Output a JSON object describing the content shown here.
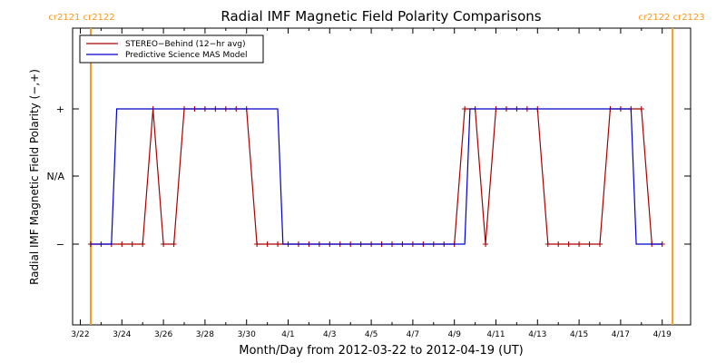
{
  "chart_data": {
    "type": "line",
    "title": "Radial IMF Magnetic Field Polarity Comparisons",
    "xlabel": "Month/Day from 2012-03-22 to 2012-04-19 (UT)",
    "ylabel": "Radial IMF Magnetic Field Polarity (−,+)",
    "x_ticks": [
      "3/22",
      "3/24",
      "3/26",
      "3/28",
      "3/30",
      "4/1",
      "4/3",
      "4/5",
      "4/7",
      "4/9",
      "4/11",
      "4/13",
      "4/15",
      "4/17",
      "4/19"
    ],
    "y_ticks": [
      "−",
      "N/A",
      "+"
    ],
    "xlim": [
      "2012-03-22",
      "2012-04-19"
    ],
    "grid": false,
    "legend_position": "top-left",
    "carrington_markers": [
      {
        "label": "cr2121 cr2122",
        "date": "2012-03-22T12:00",
        "color": "#f59a23"
      },
      {
        "label": "cr2122 cr2123",
        "date": "2012-04-19T12:00",
        "color": "#f59a23"
      }
    ],
    "series": [
      {
        "name": "STEREO−Behind (12−hr avg)",
        "color": "#aa0000",
        "marker": "plus",
        "points": [
          [
            "2012-03-22T12:00",
            -1
          ],
          [
            "2012-03-23T00:00",
            -1
          ],
          [
            "2012-03-23T12:00",
            -1
          ],
          [
            "2012-03-24T00:00",
            -1
          ],
          [
            "2012-03-24T12:00",
            -1
          ],
          [
            "2012-03-25T00:00",
            -1
          ],
          [
            "2012-03-25T12:00",
            1
          ],
          [
            "2012-03-26T00:00",
            -1
          ],
          [
            "2012-03-26T12:00",
            -1
          ],
          [
            "2012-03-27T00:00",
            1
          ],
          [
            "2012-03-27T12:00",
            1
          ],
          [
            "2012-03-28T00:00",
            1
          ],
          [
            "2012-03-28T12:00",
            1
          ],
          [
            "2012-03-29T00:00",
            1
          ],
          [
            "2012-03-29T12:00",
            1
          ],
          [
            "2012-03-30T00:00",
            1
          ],
          [
            "2012-03-30T12:00",
            -1
          ],
          [
            "2012-03-31T00:00",
            -1
          ],
          [
            "2012-03-31T12:00",
            -1
          ],
          [
            "2012-04-01T00:00",
            -1
          ],
          [
            "2012-04-01T12:00",
            -1
          ],
          [
            "2012-04-02T00:00",
            -1
          ],
          [
            "2012-04-02T12:00",
            -1
          ],
          [
            "2012-04-03T00:00",
            -1
          ],
          [
            "2012-04-03T12:00",
            -1
          ],
          [
            "2012-04-04T00:00",
            -1
          ],
          [
            "2012-04-04T12:00",
            -1
          ],
          [
            "2012-04-05T00:00",
            -1
          ],
          [
            "2012-04-05T12:00",
            -1
          ],
          [
            "2012-04-06T00:00",
            -1
          ],
          [
            "2012-04-06T12:00",
            -1
          ],
          [
            "2012-04-07T00:00",
            -1
          ],
          [
            "2012-04-07T12:00",
            -1
          ],
          [
            "2012-04-08T00:00",
            -1
          ],
          [
            "2012-04-08T12:00",
            -1
          ],
          [
            "2012-04-09T00:00",
            -1
          ],
          [
            "2012-04-09T12:00",
            1
          ],
          [
            "2012-04-10T00:00",
            1
          ],
          [
            "2012-04-10T12:00",
            -1
          ],
          [
            "2012-04-11T00:00",
            1
          ],
          [
            "2012-04-11T12:00",
            1
          ],
          [
            "2012-04-12T00:00",
            1
          ],
          [
            "2012-04-12T12:00",
            1
          ],
          [
            "2012-04-13T00:00",
            1
          ],
          [
            "2012-04-13T12:00",
            -1
          ],
          [
            "2012-04-14T00:00",
            -1
          ],
          [
            "2012-04-14T12:00",
            -1
          ],
          [
            "2012-04-15T00:00",
            -1
          ],
          [
            "2012-04-15T12:00",
            -1
          ],
          [
            "2012-04-16T00:00",
            -1
          ],
          [
            "2012-04-16T12:00",
            1
          ],
          [
            "2012-04-17T00:00",
            1
          ],
          [
            "2012-04-17T12:00",
            1
          ],
          [
            "2012-04-18T00:00",
            1
          ],
          [
            "2012-04-18T12:00",
            -1
          ],
          [
            "2012-04-19T00:00",
            -1
          ]
        ]
      },
      {
        "name": "Predictive Science MAS Model",
        "color": "#0000cc",
        "marker": "none",
        "points": [
          [
            "2012-03-22T12:00",
            -1
          ],
          [
            "2012-03-23T12:00",
            -1
          ],
          [
            "2012-03-23T18:00",
            1
          ],
          [
            "2012-03-31T12:00",
            1
          ],
          [
            "2012-03-31T18:00",
            -1
          ],
          [
            "2012-04-09T12:00",
            -1
          ],
          [
            "2012-04-09T18:00",
            1
          ],
          [
            "2012-04-17T12:00",
            1
          ],
          [
            "2012-04-17T18:00",
            -1
          ],
          [
            "2012-04-19T00:00",
            -1
          ]
        ]
      }
    ]
  }
}
